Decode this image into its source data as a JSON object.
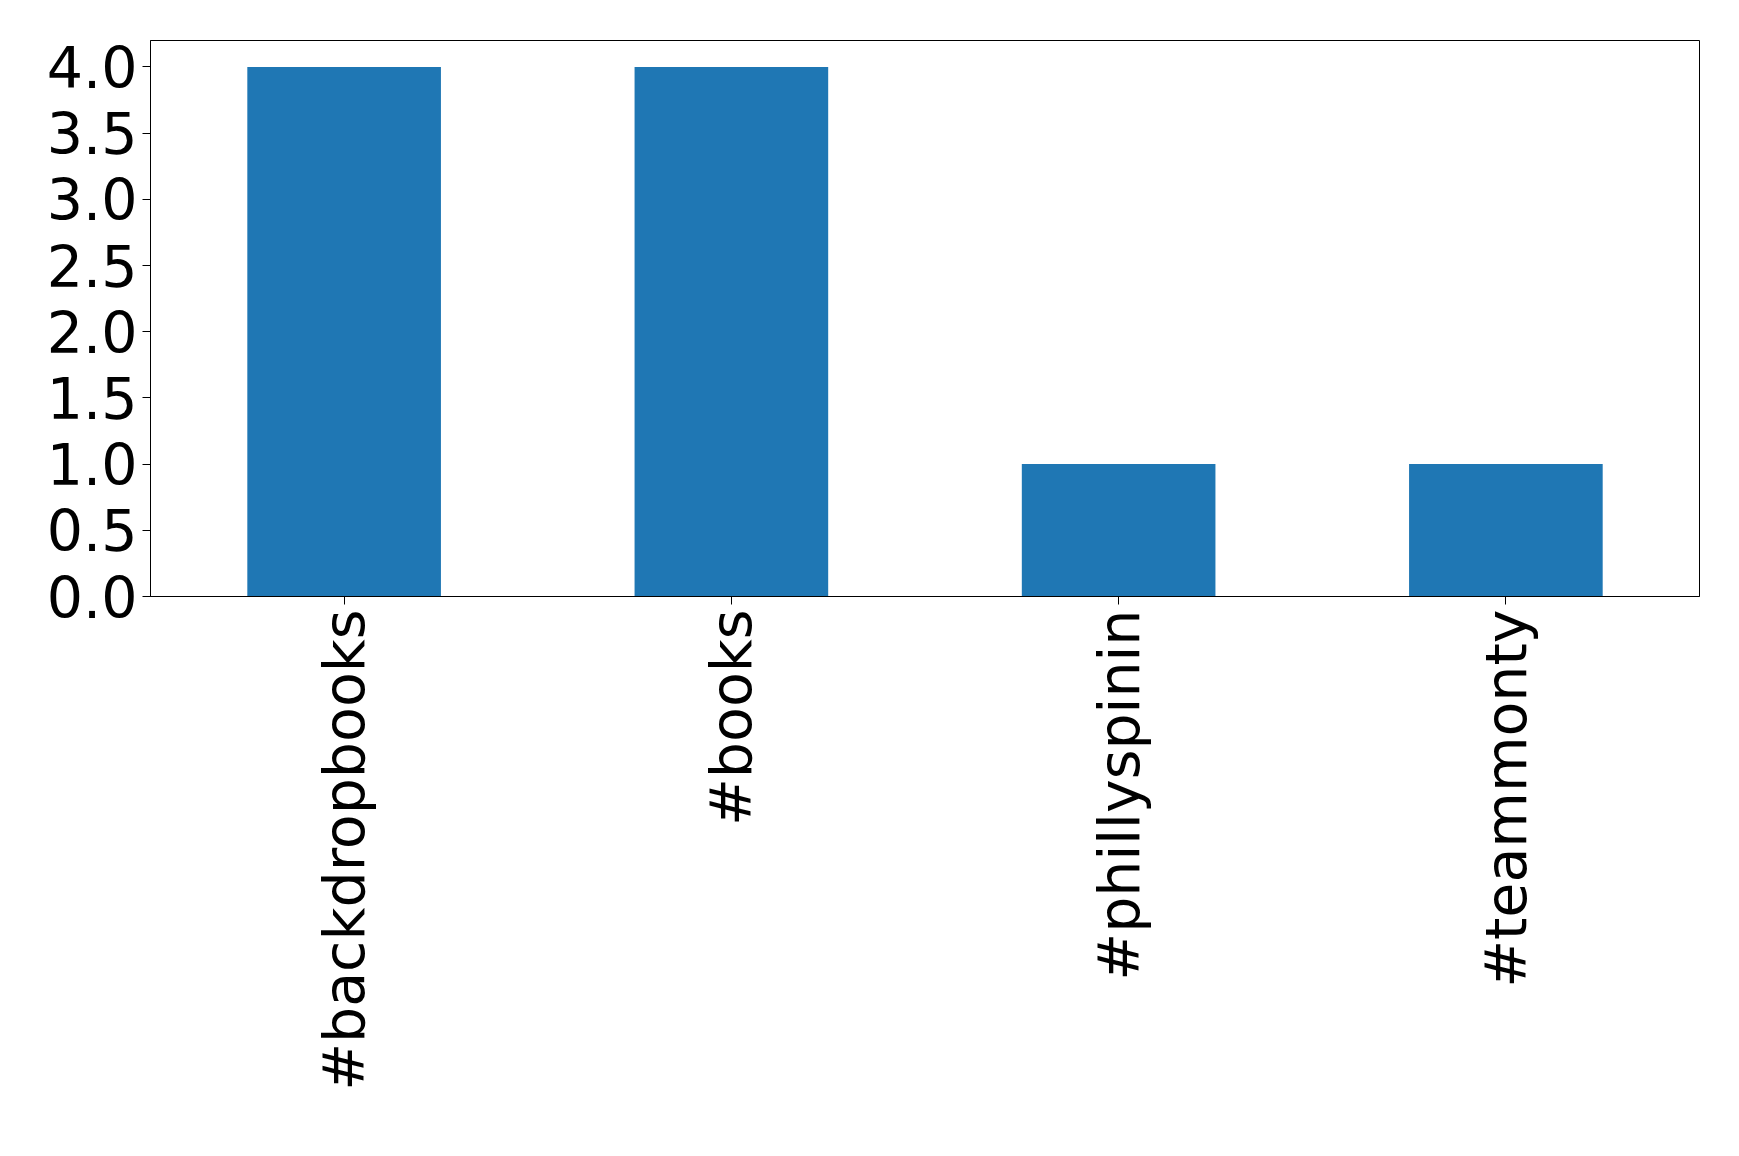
{
  "chart_data": {
    "type": "bar",
    "categories": [
      "#backdropbooks",
      "#books",
      "#phillyspinin",
      "#teammonty"
    ],
    "values": [
      4,
      4,
      1,
      1
    ],
    "color": "#1f77b4",
    "ylim": [
      0,
      4.2
    ],
    "yticks": [
      {
        "value": 0,
        "label": "0.0"
      },
      {
        "value": 0.5,
        "label": "0.5"
      },
      {
        "value": 1,
        "label": "1.0"
      },
      {
        "value": 1.5,
        "label": "1.5"
      },
      {
        "value": 2,
        "label": "2.0"
      },
      {
        "value": 2.5,
        "label": "2.5"
      },
      {
        "value": 3,
        "label": "3.0"
      },
      {
        "value": 3.5,
        "label": "3.5"
      },
      {
        "value": 4,
        "label": "4.0"
      }
    ],
    "grid": false
  }
}
